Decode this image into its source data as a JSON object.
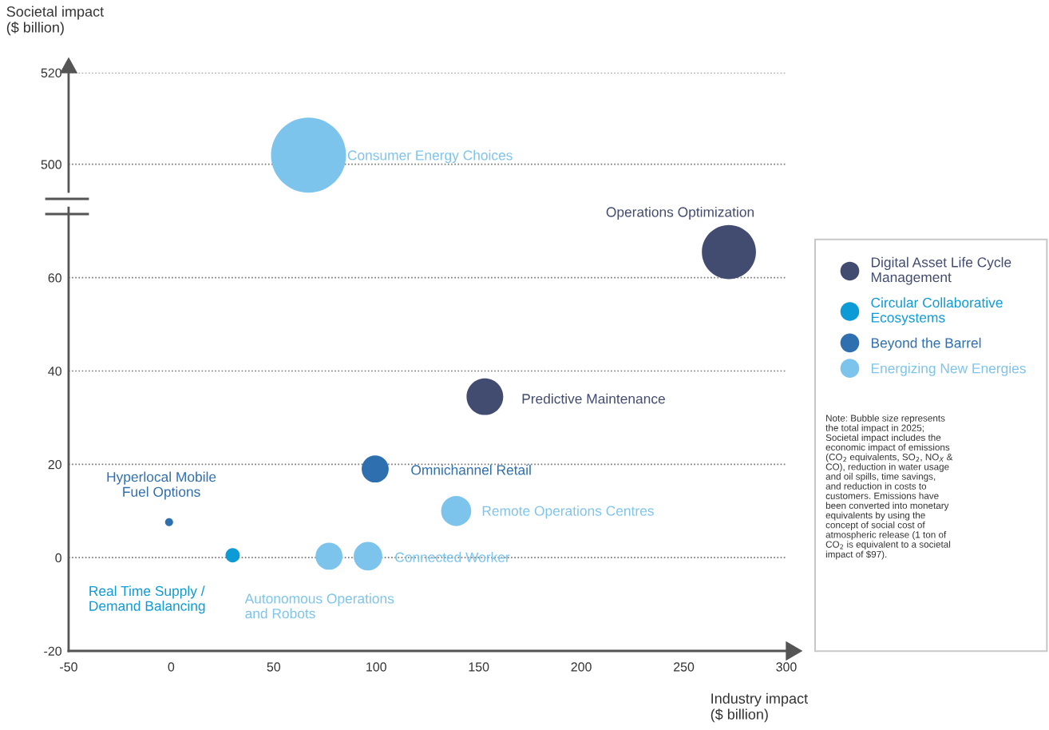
{
  "chart_data": [
    {
      "type": "bubble",
      "ylabel": "Societal impact\n($ billion)",
      "xlim": [
        -50,
        300
      ],
      "ylim": [
        494,
        520
      ],
      "yticks": [
        500,
        520
      ],
      "tick_labels": "y",
      "grid": "y",
      "series": [
        {
          "color": "#7dc4ec",
          "x": [
            67
          ],
          "values": [
            502
          ],
          "sizes": [
            1
          ]
        }
      ],
      "annotations": [
        "Consumer Energy Choices"
      ]
    },
    {
      "type": "bubble",
      "xlabel": "Industry impact\n($ billion)",
      "xlim": [
        -50,
        300
      ],
      "xticks": [
        -50,
        0,
        50,
        100,
        150,
        200,
        250,
        300
      ],
      "ylim": [
        -20,
        75
      ],
      "yticks": [
        -20,
        0,
        20,
        40,
        60
      ],
      "grid": "y",
      "legend": "right",
      "series": [
        {
          "name": "Digital Asset Life Cycle\nManagement",
          "color": "#414c70",
          "x": [
            272,
            153
          ],
          "values": [
            65.5,
            34.5
          ],
          "sizes": [
            1,
            0.46
          ]
        },
        {
          "name": "Circular Collaborative\nEcosystems",
          "color": "#0d9bd7",
          "x": [
            30
          ],
          "values": [
            0.5
          ],
          "sizes": [
            0.07
          ]
        },
        {
          "name": "Beyond the Barrel",
          "color": "#2e6fb0",
          "x": [
            99.5,
            -1
          ],
          "values": [
            19,
            7.6
          ],
          "sizes": [
            0.25,
            0.022
          ]
        },
        {
          "name": "Energizing New Energies",
          "color": "#7dc4ec",
          "x": [
            139,
            96,
            77
          ],
          "values": [
            10,
            0.3,
            0.3
          ],
          "sizes": [
            0.31,
            0.28,
            0.25
          ]
        }
      ],
      "annotations": [
        "Operations Optimization",
        {
          "text": "Predictive Maintenance",
          "x": 153,
          "y": 34.5
        },
        {
          "text": "Omnichannel Retail",
          "x": 99.5,
          "y": 19
        },
        {
          "text": "Remote Operations Centres",
          "x": 139,
          "y": 10
        },
        {
          "text": "Connected Worker",
          "x": 96,
          "y": 0.3
        },
        {
          "text": "Autonomous Operations\nand Robots",
          "x": 77,
          "y": 0.3
        },
        {
          "text": "Real Time Supply /\nDemand Balancing",
          "x": 30,
          "y": 0.5
        },
        {
          "text": "Hyperlocal Mobile\nFuel Options",
          "x": -1,
          "y": 7.6
        },
        "Note: Bubble size represents\nthe total impact in 2025;\nSocietal impact includes the\neconomic impact of emissions\n(CO$_{2}$ equivalents, SO$_{2}$, NO$_{X}$ &\nCO), reduction in water usage\nand oil spills, time savings,\nand reduction in costs to\ncustomers. Emissions have\nbeen converted into monetary\nequivalents by using the\nconcept of social cost of\natmospheric release (1 ton of\nCO$_{2}$ is equivalent to a societal\nimpact of $97)."
      ]
    }
  ]
}
